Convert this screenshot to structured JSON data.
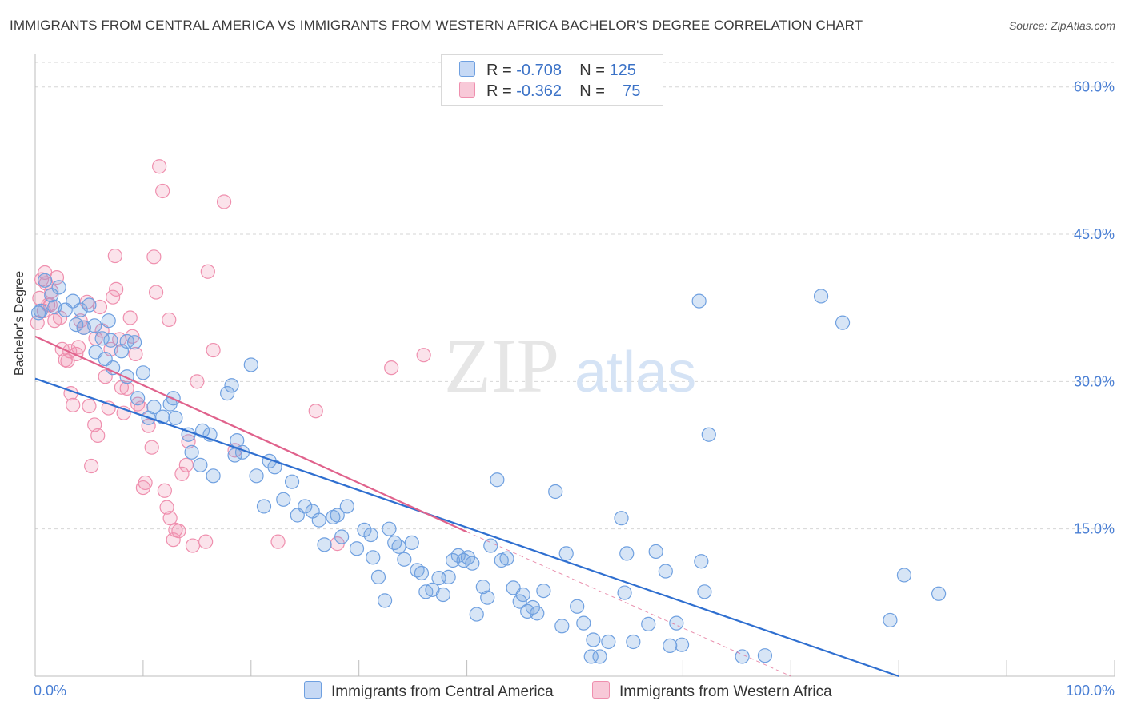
{
  "title": "IMMIGRANTS FROM CENTRAL AMERICA VS IMMIGRANTS FROM WESTERN AFRICA BACHELOR'S DEGREE CORRELATION CHART",
  "source": "Source: ZipAtlas.com",
  "watermark": {
    "zip": "ZIP",
    "atlas": "atlas"
  },
  "legend": {
    "rows": [
      {
        "r_label": "R = ",
        "r_value": "-0.708",
        "n_label": "N = ",
        "n_value": "125",
        "color": "#6fa0e0"
      },
      {
        "r_label": "R = ",
        "r_value": "-0.362",
        "n_label": "N = ",
        "n_value": "75",
        "color": "#ef8fae"
      }
    ]
  },
  "bottom_legend": {
    "central_america": "Immigrants from Central America",
    "western_africa": "Immigrants from Western Africa"
  },
  "chart_data": {
    "type": "scatter",
    "title": "IMMIGRANTS FROM CENTRAL AMERICA VS IMMIGRANTS FROM WESTERN AFRICA BACHELOR'S DEGREE CORRELATION CHART",
    "xlabel": "",
    "ylabel": "Bachelor's Degree",
    "xlim": [
      0,
      100
    ],
    "ylim": [
      0,
      62.5
    ],
    "x_tick_labels": [
      "0.0%",
      "100.0%"
    ],
    "y_ticks": [
      15,
      30,
      45,
      60
    ],
    "y_tick_labels": [
      "15.0%",
      "30.0%",
      "45.0%",
      "60.0%"
    ],
    "grid": true,
    "legend_position": "top-center",
    "colors": {
      "blue": "#6fa0e0",
      "blue_line": "#2f6fd0",
      "pink": "#ef8fae",
      "pink_line": "#e0628c"
    },
    "series": [
      {
        "name": "Immigrants from Central America",
        "color": "#6fa0e0",
        "points": [
          [
            0.5,
            37.2
          ],
          [
            0.9,
            40.3
          ],
          [
            1.5,
            38.8
          ],
          [
            1.8,
            37.6
          ],
          [
            2.2,
            39.6
          ],
          [
            3.5,
            38.2
          ],
          [
            5.0,
            37.8
          ],
          [
            4.2,
            37.3
          ],
          [
            3.8,
            35.8
          ],
          [
            4.5,
            35.5
          ],
          [
            5.5,
            35.7
          ],
          [
            6.2,
            34.4
          ],
          [
            5.6,
            33.0
          ],
          [
            7.0,
            34.2
          ],
          [
            8.5,
            34.1
          ],
          [
            8.0,
            33.1
          ],
          [
            6.5,
            32.3
          ],
          [
            7.2,
            31.4
          ],
          [
            8.5,
            30.5
          ],
          [
            10.0,
            30.9
          ],
          [
            9.5,
            28.3
          ],
          [
            12.8,
            28.3
          ],
          [
            11.0,
            27.4
          ],
          [
            12.5,
            27.7
          ],
          [
            11.8,
            26.4
          ],
          [
            10.5,
            26.3
          ],
          [
            13.0,
            26.3
          ],
          [
            14.2,
            24.6
          ],
          [
            15.5,
            25.0
          ],
          [
            16.2,
            24.6
          ],
          [
            17.8,
            28.8
          ],
          [
            18.2,
            29.6
          ],
          [
            20.0,
            31.7
          ],
          [
            14.5,
            22.8
          ],
          [
            15.3,
            21.5
          ],
          [
            16.5,
            20.4
          ],
          [
            18.5,
            22.5
          ],
          [
            19.2,
            22.8
          ],
          [
            18.7,
            24.0
          ],
          [
            20.5,
            20.4
          ],
          [
            21.2,
            17.3
          ],
          [
            21.7,
            21.9
          ],
          [
            22.2,
            21.3
          ],
          [
            23.0,
            18.0
          ],
          [
            23.8,
            19.8
          ],
          [
            24.3,
            16.4
          ],
          [
            25.0,
            17.3
          ],
          [
            25.7,
            16.8
          ],
          [
            26.3,
            15.9
          ],
          [
            26.8,
            13.4
          ],
          [
            27.6,
            16.2
          ],
          [
            28.0,
            16.4
          ],
          [
            28.4,
            14.2
          ],
          [
            28.9,
            17.3
          ],
          [
            29.8,
            13.0
          ],
          [
            30.5,
            14.9
          ],
          [
            31.1,
            14.4
          ],
          [
            31.3,
            12.1
          ],
          [
            31.8,
            10.1
          ],
          [
            32.4,
            7.7
          ],
          [
            32.8,
            15.0
          ],
          [
            33.3,
            13.6
          ],
          [
            33.7,
            13.2
          ],
          [
            34.2,
            11.9
          ],
          [
            34.9,
            13.6
          ],
          [
            35.4,
            10.8
          ],
          [
            35.8,
            10.5
          ],
          [
            36.2,
            8.6
          ],
          [
            36.8,
            8.8
          ],
          [
            37.4,
            10.0
          ],
          [
            37.8,
            8.3
          ],
          [
            38.3,
            10.1
          ],
          [
            38.7,
            11.8
          ],
          [
            39.2,
            12.3
          ],
          [
            39.7,
            11.8
          ],
          [
            40.1,
            12.1
          ],
          [
            40.5,
            11.5
          ],
          [
            40.9,
            6.3
          ],
          [
            41.5,
            9.1
          ],
          [
            41.9,
            8.0
          ],
          [
            42.2,
            13.3
          ],
          [
            42.8,
            20.0
          ],
          [
            43.2,
            11.8
          ],
          [
            43.7,
            12.0
          ],
          [
            44.3,
            9.0
          ],
          [
            44.9,
            7.6
          ],
          [
            45.2,
            8.3
          ],
          [
            45.6,
            6.6
          ],
          [
            46.1,
            7.0
          ],
          [
            46.5,
            6.4
          ],
          [
            47.1,
            8.7
          ],
          [
            48.2,
            18.8
          ],
          [
            48.8,
            5.1
          ],
          [
            49.2,
            12.5
          ],
          [
            50.2,
            7.1
          ],
          [
            50.8,
            5.4
          ],
          [
            51.5,
            2.0
          ],
          [
            51.7,
            3.7
          ],
          [
            52.3,
            2.0
          ],
          [
            53.1,
            3.5
          ],
          [
            54.3,
            16.1
          ],
          [
            54.6,
            8.5
          ],
          [
            54.8,
            12.5
          ],
          [
            55.4,
            3.5
          ],
          [
            56.8,
            5.3
          ],
          [
            57.5,
            12.7
          ],
          [
            58.4,
            10.7
          ],
          [
            58.8,
            3.1
          ],
          [
            59.4,
            5.4
          ],
          [
            59.9,
            3.2
          ],
          [
            61.5,
            38.2
          ],
          [
            61.7,
            11.7
          ],
          [
            62.0,
            8.6
          ],
          [
            62.4,
            24.6
          ],
          [
            65.5,
            2.0
          ],
          [
            67.6,
            2.1
          ],
          [
            72.8,
            38.7
          ],
          [
            74.8,
            36.0
          ],
          [
            79.2,
            5.7
          ],
          [
            80.5,
            10.3
          ],
          [
            83.7,
            8.4
          ],
          [
            0.3,
            37.0
          ],
          [
            2.8,
            37.3
          ],
          [
            6.8,
            36.2
          ],
          [
            9.2,
            34.0
          ]
        ],
        "trend_line": {
          "x": [
            0,
            80.0
          ],
          "y": [
            30.3,
            0.0
          ]
        }
      },
      {
        "name": "Immigrants from Western Africa",
        "color": "#ef8fae",
        "points": [
          [
            0.2,
            36.0
          ],
          [
            0.4,
            38.5
          ],
          [
            0.6,
            40.4
          ],
          [
            0.8,
            37.2
          ],
          [
            1.0,
            40.0
          ],
          [
            1.2,
            37.8
          ],
          [
            1.5,
            39.2
          ],
          [
            1.8,
            36.2
          ],
          [
            2.0,
            40.6
          ],
          [
            2.3,
            36.5
          ],
          [
            2.5,
            33.3
          ],
          [
            2.8,
            32.2
          ],
          [
            3.0,
            32.1
          ],
          [
            3.2,
            33.1
          ],
          [
            3.3,
            28.8
          ],
          [
            3.5,
            27.6
          ],
          [
            3.8,
            32.8
          ],
          [
            4.0,
            33.5
          ],
          [
            4.2,
            36.2
          ],
          [
            4.5,
            35.5
          ],
          [
            4.8,
            38.1
          ],
          [
            5.0,
            27.5
          ],
          [
            5.2,
            21.4
          ],
          [
            5.5,
            25.6
          ],
          [
            5.8,
            24.5
          ],
          [
            6.0,
            37.6
          ],
          [
            6.2,
            35.2
          ],
          [
            6.5,
            30.5
          ],
          [
            6.8,
            27.3
          ],
          [
            7.0,
            33.3
          ],
          [
            7.2,
            38.6
          ],
          [
            7.5,
            39.4
          ],
          [
            7.8,
            34.3
          ],
          [
            8.0,
            29.4
          ],
          [
            8.2,
            26.8
          ],
          [
            8.5,
            29.3
          ],
          [
            8.8,
            36.5
          ],
          [
            9.0,
            34.6
          ],
          [
            9.3,
            32.8
          ],
          [
            9.5,
            27.7
          ],
          [
            9.8,
            27.3
          ],
          [
            10.0,
            19.2
          ],
          [
            10.2,
            19.7
          ],
          [
            10.5,
            25.5
          ],
          [
            10.8,
            23.3
          ],
          [
            11.0,
            42.7
          ],
          [
            11.2,
            39.1
          ],
          [
            11.5,
            51.9
          ],
          [
            11.8,
            49.4
          ],
          [
            12.0,
            18.9
          ],
          [
            12.2,
            17.2
          ],
          [
            12.5,
            16.1
          ],
          [
            12.8,
            13.9
          ],
          [
            13.0,
            14.9
          ],
          [
            13.3,
            14.8
          ],
          [
            13.6,
            20.6
          ],
          [
            14.0,
            21.5
          ],
          [
            14.2,
            23.9
          ],
          [
            14.6,
            13.3
          ],
          [
            15.0,
            30.0
          ],
          [
            15.8,
            13.7
          ],
          [
            16.0,
            41.2
          ],
          [
            16.5,
            33.2
          ],
          [
            17.5,
            48.3
          ],
          [
            18.5,
            23.0
          ],
          [
            22.5,
            13.7
          ],
          [
            26.0,
            27.0
          ],
          [
            28.0,
            13.5
          ],
          [
            33.0,
            31.4
          ],
          [
            36.0,
            32.7
          ],
          [
            0.9,
            41.1
          ],
          [
            1.4,
            37.8
          ],
          [
            5.6,
            34.4
          ],
          [
            7.4,
            42.8
          ],
          [
            12.4,
            36.3
          ]
        ],
        "trend_line": {
          "x": [
            0,
            40.0
          ],
          "y": [
            34.6,
            14.7
          ]
        },
        "trend_line_extension": {
          "x": [
            40.0,
            70.0
          ],
          "y": [
            14.7,
            0.0
          ]
        }
      }
    ]
  }
}
